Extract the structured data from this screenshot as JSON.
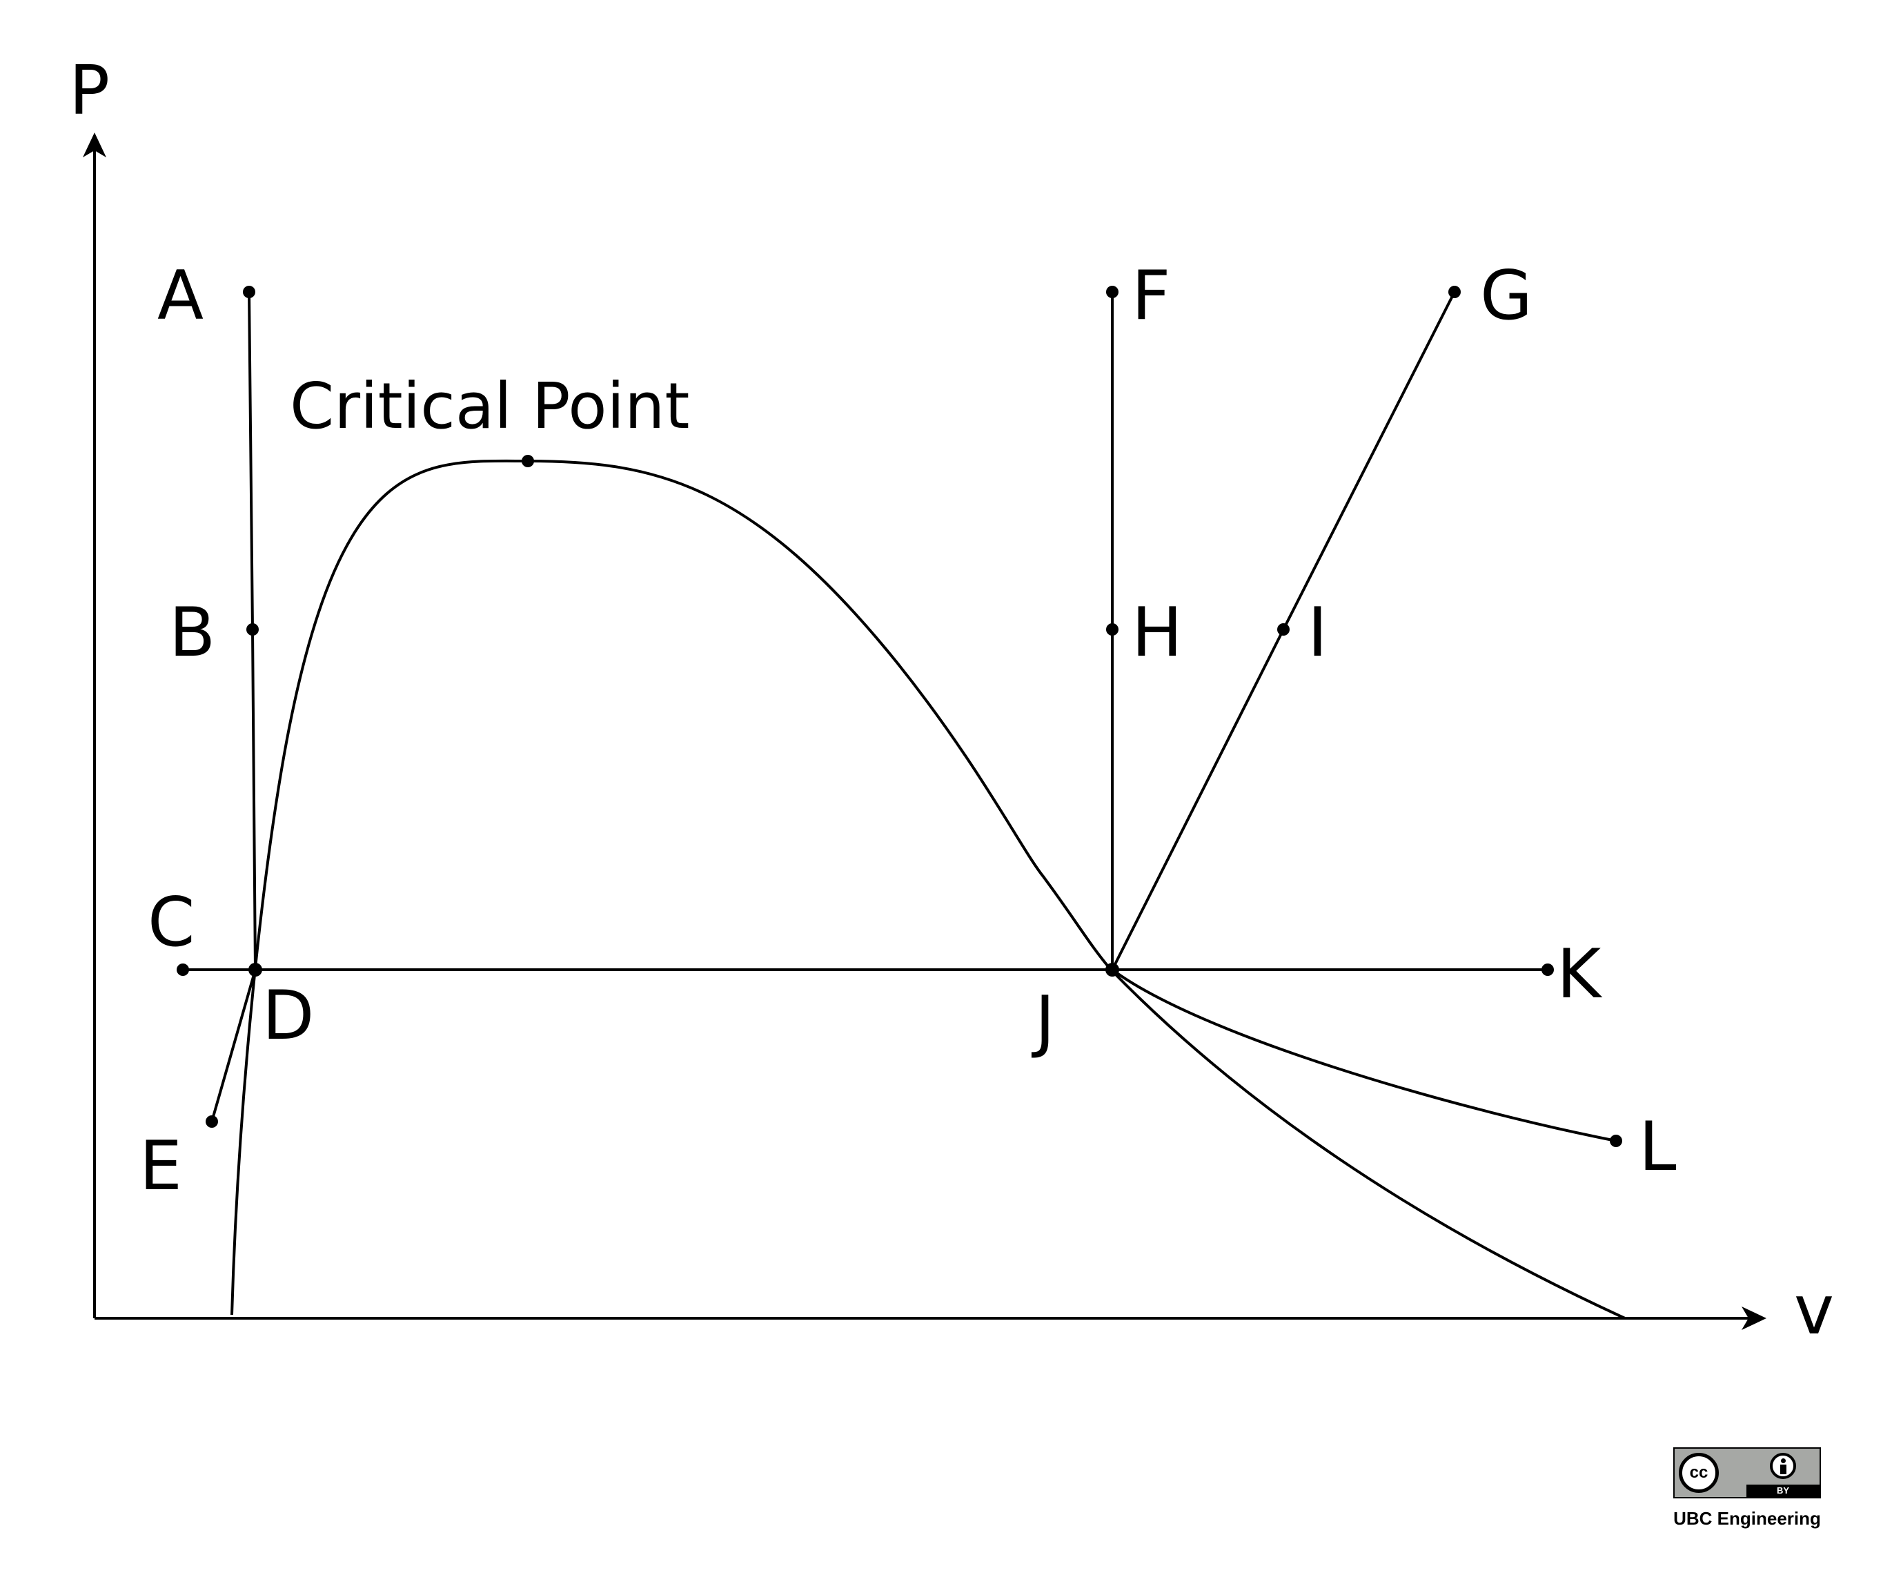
{
  "axes": {
    "y_label": "P",
    "x_label": "v"
  },
  "critical_point_label": "Critical Point",
  "points": {
    "A": "A",
    "B": "B",
    "C": "C",
    "D": "D",
    "E": "E",
    "F": "F",
    "G": "G",
    "H": "H",
    "I": "I",
    "J": "J",
    "K": "K",
    "L": "L"
  },
  "license": {
    "cc_text": "cc",
    "by_text": "BY",
    "caption": "UBC Engineering"
  }
}
